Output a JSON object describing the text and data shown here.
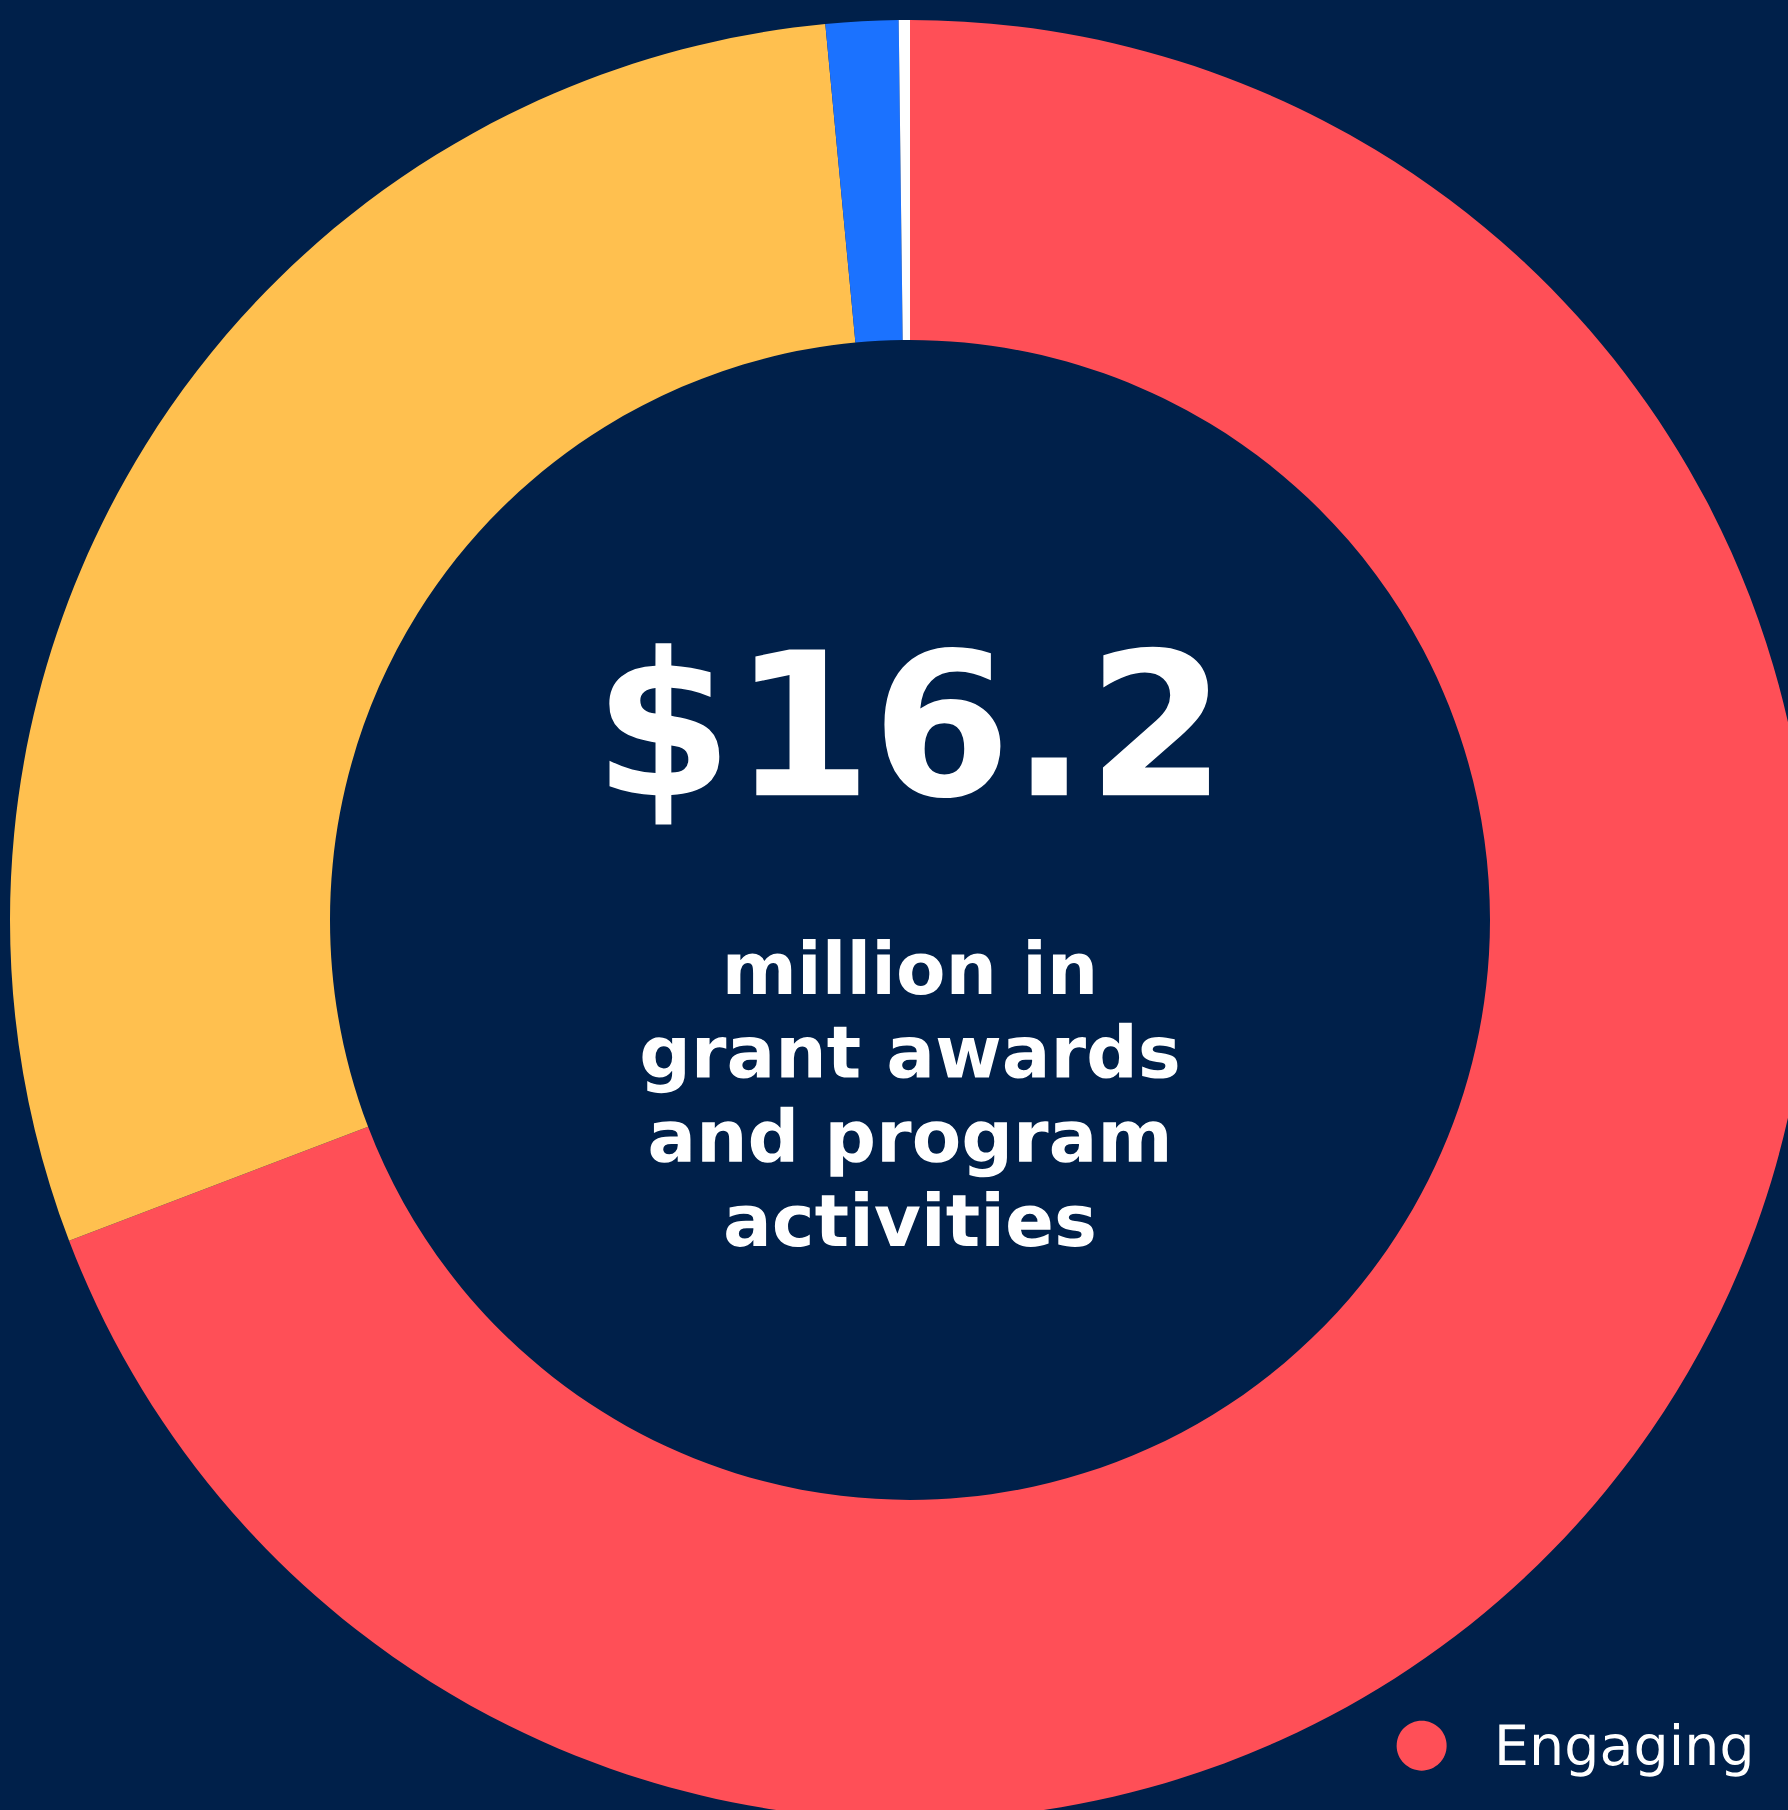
{
  "chart_data": {
    "type": "donut",
    "categories": [
      "Engaging",
      null,
      null,
      null
    ],
    "values": [
      69.2,
      29.3,
      1.3,
      0.2
    ],
    "colors": [
      "#ff4f57",
      "#ffc04f",
      "#1b72ff",
      "#ffffff"
    ],
    "annotations": [
      "$16.2",
      "million in\ngrant awards\nand program\nactivities"
    ],
    "legend": "bottom right"
  }
}
